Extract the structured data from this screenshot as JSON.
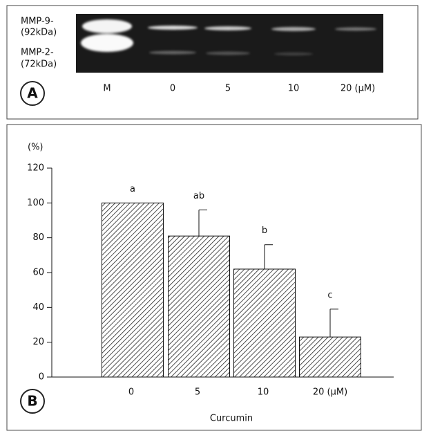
{
  "panel_a": {
    "label": "A",
    "band_labels": [
      "MMP-9-",
      "(92kDa)",
      "MMP-2-",
      "(72kDa)"
    ],
    "lanes": [
      "M",
      "0",
      "5",
      "10",
      "20 (μM)"
    ]
  },
  "panel_b": {
    "label": "B"
  },
  "chart_data": {
    "type": "bar",
    "y_label": "(%)",
    "x_label": "Curcumin",
    "categories": [
      "0",
      "5",
      "10",
      "20 (μM)"
    ],
    "values": [
      100,
      81,
      62,
      23
    ],
    "errors": [
      null,
      15,
      14,
      16
    ],
    "annotations": [
      "a",
      "ab",
      "b",
      "c"
    ],
    "ylim": [
      0,
      120
    ],
    "yticks": [
      0,
      20,
      40,
      60,
      80,
      100,
      120
    ]
  }
}
